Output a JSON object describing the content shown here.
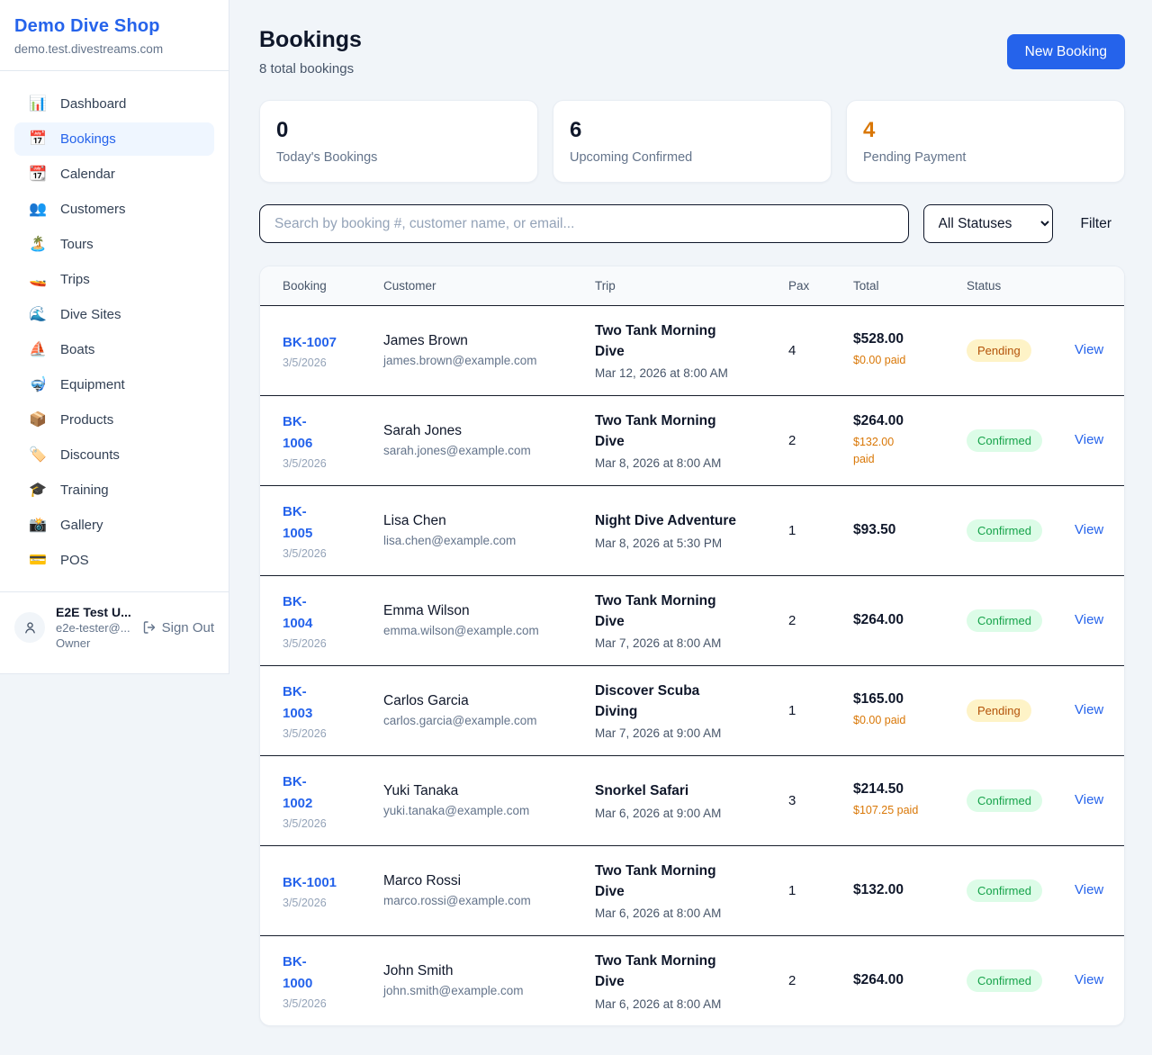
{
  "colors": {
    "accent_blue": "#2563eb",
    "pending_badge_bg": "#fef3c7",
    "pending_badge_text": "#b45309",
    "confirmed_badge_bg": "#dcfce7",
    "confirmed_badge_text": "#16a34a",
    "paid_orange": "#d97706",
    "row_divider": "#161d2b"
  },
  "sidebar": {
    "brand": {
      "name": "Demo Dive Shop",
      "domain": "demo.test.divestreams.com"
    },
    "items": [
      {
        "key": "dashboard",
        "icon": "bar-chart",
        "glyph": "📊",
        "label": "Dashboard",
        "active": false
      },
      {
        "key": "bookings",
        "icon": "calendar",
        "glyph": "📅",
        "label": "Bookings",
        "active": true
      },
      {
        "key": "calendar",
        "icon": "tear-off-calendar",
        "glyph": "📆",
        "label": "Calendar",
        "active": false
      },
      {
        "key": "customers",
        "icon": "people",
        "glyph": "👥",
        "label": "Customers",
        "active": false
      },
      {
        "key": "tours",
        "icon": "desert-island",
        "glyph": "🏝️",
        "label": "Tours",
        "active": false
      },
      {
        "key": "trips",
        "icon": "speedboat",
        "glyph": "🚤",
        "label": "Trips",
        "active": false
      },
      {
        "key": "dive-sites",
        "icon": "water-wave",
        "glyph": "🌊",
        "label": "Dive Sites",
        "active": false
      },
      {
        "key": "boats",
        "icon": "sailboat",
        "glyph": "⛵",
        "label": "Boats",
        "active": false
      },
      {
        "key": "equipment",
        "icon": "diving-mask",
        "glyph": "🤿",
        "label": "Equipment",
        "active": false
      },
      {
        "key": "products",
        "icon": "package",
        "glyph": "📦",
        "label": "Products",
        "active": false
      },
      {
        "key": "discounts",
        "icon": "label-tag",
        "glyph": "🏷️",
        "label": "Discounts",
        "active": false
      },
      {
        "key": "training",
        "icon": "graduation-cap",
        "glyph": "🎓",
        "label": "Training",
        "active": false
      },
      {
        "key": "gallery",
        "icon": "camera-flash",
        "glyph": "📸",
        "label": "Gallery",
        "active": false
      },
      {
        "key": "pos",
        "icon": "credit-card",
        "glyph": "💳",
        "label": "POS",
        "active": false
      }
    ],
    "user": {
      "name": "E2E Test U...",
      "email": "e2e-tester@...",
      "role": "Owner",
      "sign_out_label": "Sign Out"
    }
  },
  "header": {
    "title": "Bookings",
    "subtitle": "8 total bookings",
    "new_booking_label": "New Booking"
  },
  "stats": [
    {
      "value": "0",
      "label": "Today's Bookings",
      "highlight": false
    },
    {
      "value": "6",
      "label": "Upcoming Confirmed",
      "highlight": false
    },
    {
      "value": "4",
      "label": "Pending Payment",
      "highlight": true
    }
  ],
  "toolbar": {
    "search_placeholder": "Search by booking #, customer name, or email...",
    "status_filter_selected": "All Statuses",
    "filter_label": "Filter"
  },
  "table": {
    "columns": [
      "Booking",
      "Customer",
      "Trip",
      "Pax",
      "Total",
      "Status",
      ""
    ],
    "view_label": "View",
    "rows": [
      {
        "number_lines": [
          "BK-1007"
        ],
        "date": "3/5/2026",
        "customer": "James Brown",
        "email": "james.brown@example.com",
        "trip_lines": [
          "Two Tank Morning",
          "Dive"
        ],
        "trip_datetime": "Mar 12, 2026 at 8:00 AM",
        "pax": "4",
        "total": "$528.00",
        "paid_lines": [
          "$0.00 paid"
        ],
        "status": "Pending"
      },
      {
        "number_lines": [
          "BK-",
          "1006"
        ],
        "date": "3/5/2026",
        "customer": "Sarah Jones",
        "email": "sarah.jones@example.com",
        "trip_lines": [
          "Two Tank Morning",
          "Dive"
        ],
        "trip_datetime": "Mar 8, 2026 at 8:00 AM",
        "pax": "2",
        "total": "$264.00",
        "paid_lines": [
          "$132.00",
          "paid"
        ],
        "status": "Confirmed"
      },
      {
        "number_lines": [
          "BK-",
          "1005"
        ],
        "date": "3/5/2026",
        "customer": "Lisa Chen",
        "email": "lisa.chen@example.com",
        "trip_lines": [
          "Night Dive Adventure"
        ],
        "trip_datetime": "Mar 8, 2026 at 5:30 PM",
        "pax": "1",
        "total": "$93.50",
        "paid_lines": null,
        "status": "Confirmed"
      },
      {
        "number_lines": [
          "BK-",
          "1004"
        ],
        "date": "3/5/2026",
        "customer": "Emma Wilson",
        "email": "emma.wilson@example.com",
        "trip_lines": [
          "Two Tank Morning",
          "Dive"
        ],
        "trip_datetime": "Mar 7, 2026 at 8:00 AM",
        "pax": "2",
        "total": "$264.00",
        "paid_lines": null,
        "status": "Confirmed"
      },
      {
        "number_lines": [
          "BK-",
          "1003"
        ],
        "date": "3/5/2026",
        "customer": "Carlos Garcia",
        "email": "carlos.garcia@example.com",
        "trip_lines": [
          "Discover Scuba",
          "Diving"
        ],
        "trip_datetime": "Mar 7, 2026 at 9:00 AM",
        "pax": "1",
        "total": "$165.00",
        "paid_lines": [
          "$0.00 paid"
        ],
        "status": "Pending"
      },
      {
        "number_lines": [
          "BK-",
          "1002"
        ],
        "date": "3/5/2026",
        "customer": "Yuki Tanaka",
        "email": "yuki.tanaka@example.com",
        "trip_lines": [
          "Snorkel Safari"
        ],
        "trip_datetime": "Mar 6, 2026 at 9:00 AM",
        "pax": "3",
        "total": "$214.50",
        "paid_lines": [
          "$107.25 paid"
        ],
        "status": "Confirmed"
      },
      {
        "number_lines": [
          "BK-1001"
        ],
        "date": "3/5/2026",
        "customer": "Marco Rossi",
        "email": "marco.rossi@example.com",
        "trip_lines": [
          "Two Tank Morning",
          "Dive"
        ],
        "trip_datetime": "Mar 6, 2026 at 8:00 AM",
        "pax": "1",
        "total": "$132.00",
        "paid_lines": null,
        "status": "Confirmed"
      },
      {
        "number_lines": [
          "BK-",
          "1000"
        ],
        "date": "3/5/2026",
        "customer": "John Smith",
        "email": "john.smith@example.com",
        "trip_lines": [
          "Two Tank Morning",
          "Dive"
        ],
        "trip_datetime": "Mar 6, 2026 at 8:00 AM",
        "pax": "2",
        "total": "$264.00",
        "paid_lines": null,
        "status": "Confirmed"
      }
    ]
  }
}
